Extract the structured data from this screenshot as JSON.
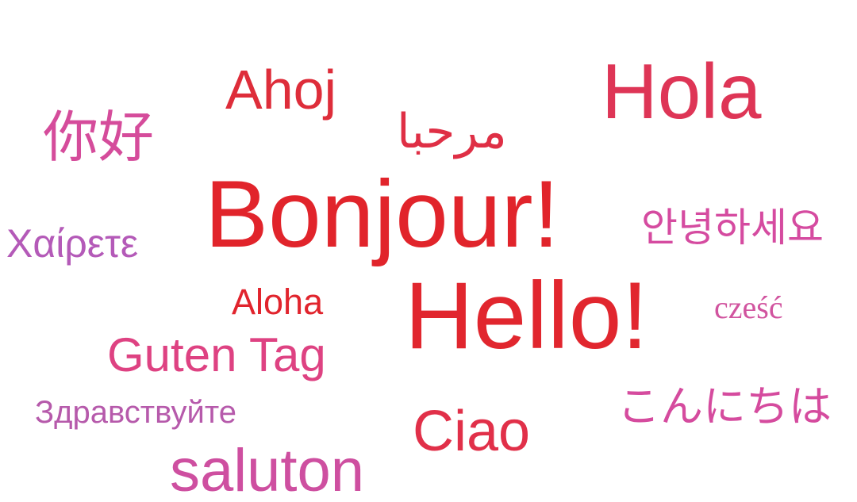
{
  "words": {
    "ahoj": {
      "text": "Ahoj",
      "color": "#de2d3a"
    },
    "hola": {
      "text": "Hola",
      "color": "#de3556"
    },
    "nihao": {
      "text": "你好",
      "color": "#d54c9b"
    },
    "marhaba": {
      "text": "مرحبا",
      "color": "#df2f45"
    },
    "bonjour": {
      "text": "Bonjour!",
      "color": "#e1242b"
    },
    "annyeong": {
      "text": "안녕하세요",
      "color": "#d54ba0"
    },
    "chairete": {
      "text": "Χαίρετε",
      "color": "#b45ab8"
    },
    "aloha": {
      "text": "Aloha",
      "color": "#e1242d"
    },
    "hello": {
      "text": "Hello!",
      "color": "#e1262e"
    },
    "czesc": {
      "text": "cześć",
      "color": "#d1549f"
    },
    "gutentag": {
      "text": "Guten Tag",
      "color": "#de4282"
    },
    "zdravstvuyte": {
      "text": "Здравствуйте",
      "color": "#b65aab"
    },
    "konnichiwa": {
      "text": "こんにちは",
      "color": "#d54b9e"
    },
    "ciao": {
      "text": "Ciao",
      "color": "#e13049"
    },
    "saluton": {
      "text": "saluton",
      "color": "#ce4fa0"
    }
  }
}
